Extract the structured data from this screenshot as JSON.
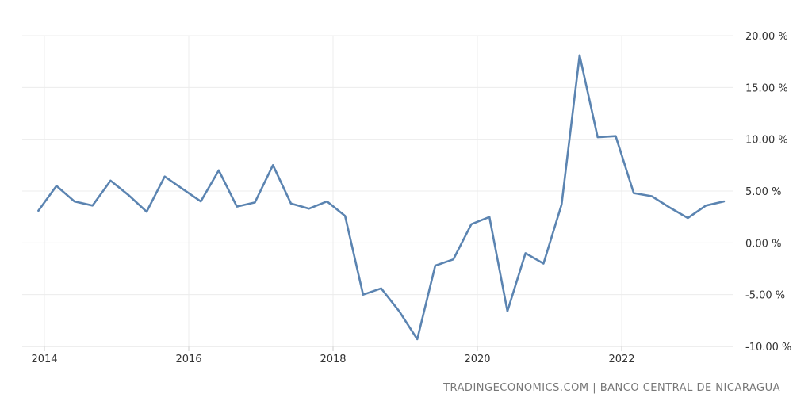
{
  "chart_data": {
    "type": "line",
    "title": "",
    "xlabel": "",
    "ylabel": "",
    "ylim": [
      -10,
      20
    ],
    "y_ticks": [
      20,
      15,
      10,
      5,
      0,
      -5,
      -10
    ],
    "y_tick_labels": [
      "20.00 %",
      "15.00 %",
      "10.00 %",
      "5.00 %",
      "0.00 %",
      "-5.00 %",
      "-10.00 %"
    ],
    "x_ticks": [
      "2014",
      "2016",
      "2018",
      "2020",
      "2022"
    ],
    "grid": true,
    "line_color": "#5b84b1",
    "series": [
      {
        "x": [
          "2013-12",
          "2014-03",
          "2014-06",
          "2014-09",
          "2014-12",
          "2015-03",
          "2015-06",
          "2015-09",
          "2015-12",
          "2016-03",
          "2016-06",
          "2016-09",
          "2016-12",
          "2017-03",
          "2017-06",
          "2017-09",
          "2017-12",
          "2018-03",
          "2018-06",
          "2018-09",
          "2018-12",
          "2019-03",
          "2019-06",
          "2019-09",
          "2019-12",
          "2020-03",
          "2020-06",
          "2020-09",
          "2020-12",
          "2021-03",
          "2021-06",
          "2021-09",
          "2021-12",
          "2022-03",
          "2022-06",
          "2022-09",
          "2022-12",
          "2023-03",
          "2023-06"
        ],
        "values": [
          3.1,
          5.5,
          4.0,
          3.6,
          6.0,
          4.6,
          3.0,
          6.4,
          5.2,
          4.0,
          7.0,
          3.5,
          3.9,
          7.5,
          3.8,
          3.3,
          4.0,
          2.6,
          -5.0,
          -4.4,
          -6.6,
          -9.3,
          -2.2,
          -1.6,
          1.8,
          2.5,
          -6.6,
          -1.0,
          -2.0,
          3.7,
          18.1,
          10.2,
          10.3,
          4.8,
          4.5,
          3.4,
          2.4,
          3.6,
          4.0
        ]
      }
    ]
  },
  "source_text": "TRADINGECONOMICS.COM | BANCO CENTRAL DE NICARAGUA"
}
